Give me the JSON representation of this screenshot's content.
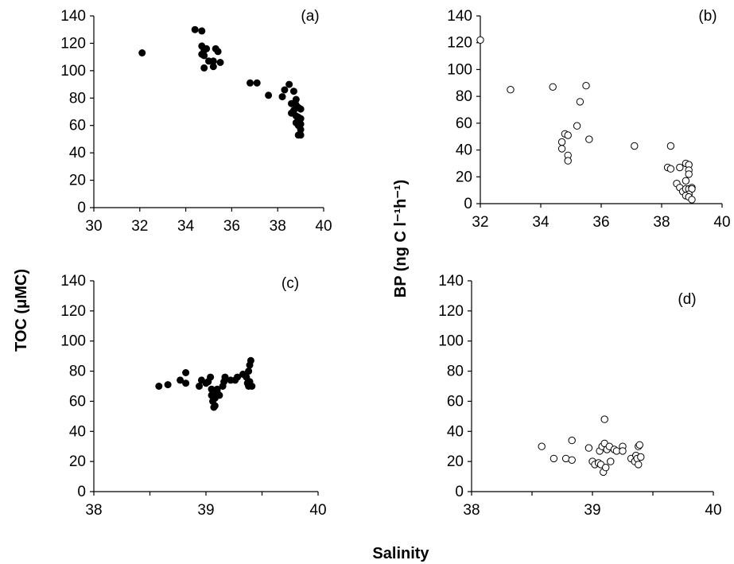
{
  "figure": {
    "y_label_left": "TOC (μMC)",
    "y_label_right": "BP (ng C l⁻¹h⁻¹)",
    "x_label": "Salinity",
    "colors": {
      "filled": "#000000",
      "open_fill": "#ffffff",
      "stroke": "#000000"
    }
  },
  "chart_data": [
    {
      "type": "scatter",
      "label": "(a)",
      "marker": "filled",
      "xlim": [
        30,
        40
      ],
      "ylim": [
        0,
        140
      ],
      "xticks": [
        30,
        32,
        34,
        36,
        38,
        40
      ],
      "yticks": [
        0,
        20,
        40,
        60,
        80,
        100,
        120,
        140
      ],
      "points": [
        [
          32.1,
          113
        ],
        [
          34.4,
          130
        ],
        [
          34.7,
          129
        ],
        [
          34.7,
          118
        ],
        [
          34.8,
          115
        ],
        [
          34.9,
          116
        ],
        [
          34.7,
          112
        ],
        [
          34.8,
          111
        ],
        [
          34.8,
          102
        ],
        [
          35.0,
          107
        ],
        [
          35.2,
          107
        ],
        [
          35.2,
          103
        ],
        [
          35.3,
          116
        ],
        [
          35.4,
          114
        ],
        [
          35.5,
          106
        ],
        [
          36.8,
          91
        ],
        [
          37.1,
          91
        ],
        [
          37.6,
          82
        ],
        [
          38.2,
          81
        ],
        [
          38.3,
          86
        ],
        [
          38.5,
          90
        ],
        [
          38.7,
          85
        ],
        [
          38.6,
          76
        ],
        [
          38.7,
          71
        ],
        [
          38.8,
          79
        ],
        [
          38.8,
          75
        ],
        [
          38.9,
          73
        ],
        [
          39.0,
          72
        ],
        [
          38.6,
          69
        ],
        [
          38.8,
          67
        ],
        [
          38.9,
          66
        ],
        [
          38.8,
          62
        ],
        [
          39.0,
          65
        ],
        [
          38.9,
          60
        ],
        [
          39.0,
          57
        ],
        [
          38.9,
          53
        ],
        [
          39.0,
          53
        ],
        [
          39.0,
          61
        ]
      ]
    },
    {
      "type": "scatter",
      "label": "(b)",
      "marker": "open",
      "xlim": [
        32,
        40
      ],
      "ylim": [
        0,
        140
      ],
      "xticks": [
        32,
        34,
        36,
        38,
        40
      ],
      "yticks": [
        0,
        20,
        40,
        60,
        80,
        100,
        120,
        140
      ],
      "points": [
        [
          32.0,
          122
        ],
        [
          33.0,
          85
        ],
        [
          34.4,
          87
        ],
        [
          35.5,
          88
        ],
        [
          35.3,
          76
        ],
        [
          35.2,
          58
        ],
        [
          34.8,
          52
        ],
        [
          34.9,
          51
        ],
        [
          35.6,
          48
        ],
        [
          34.7,
          46
        ],
        [
          34.7,
          41
        ],
        [
          34.9,
          36
        ],
        [
          34.9,
          32
        ],
        [
          37.1,
          43
        ],
        [
          38.3,
          43
        ],
        [
          38.2,
          27
        ],
        [
          38.3,
          26
        ],
        [
          38.6,
          27
        ],
        [
          38.8,
          30
        ],
        [
          38.9,
          29
        ],
        [
          38.9,
          25
        ],
        [
          38.9,
          22
        ],
        [
          38.8,
          17
        ],
        [
          38.5,
          15
        ],
        [
          38.6,
          12
        ],
        [
          38.7,
          9
        ],
        [
          38.8,
          11
        ],
        [
          38.9,
          11
        ],
        [
          39.0,
          12
        ],
        [
          39.0,
          11
        ],
        [
          38.9,
          7
        ],
        [
          38.8,
          6
        ],
        [
          38.9,
          5
        ],
        [
          39.0,
          3
        ]
      ]
    },
    {
      "type": "scatter",
      "label": "(c)",
      "marker": "filled",
      "xlim": [
        38,
        40
      ],
      "ylim": [
        0,
        140
      ],
      "xticks": [
        38,
        39,
        40
      ],
      "yticks": [
        0,
        20,
        40,
        60,
        80,
        100,
        120,
        140
      ],
      "points": [
        [
          38.58,
          70
        ],
        [
          38.66,
          71
        ],
        [
          38.77,
          74
        ],
        [
          38.82,
          72
        ],
        [
          38.82,
          79
        ],
        [
          38.94,
          70
        ],
        [
          38.96,
          74
        ],
        [
          39.0,
          72
        ],
        [
          39.02,
          73
        ],
        [
          39.04,
          76
        ],
        [
          39.05,
          68
        ],
        [
          39.05,
          64
        ],
        [
          39.06,
          60
        ],
        [
          39.07,
          56
        ],
        [
          39.08,
          57
        ],
        [
          39.08,
          62
        ],
        [
          39.1,
          68
        ],
        [
          39.1,
          66
        ],
        [
          39.12,
          64
        ],
        [
          39.15,
          70
        ],
        [
          39.16,
          73
        ],
        [
          39.17,
          76
        ],
        [
          39.22,
          74
        ],
        [
          39.26,
          74
        ],
        [
          39.28,
          76
        ],
        [
          39.33,
          78
        ],
        [
          39.36,
          76
        ],
        [
          39.37,
          72
        ],
        [
          39.38,
          70
        ],
        [
          39.39,
          73
        ],
        [
          39.38,
          80
        ],
        [
          39.39,
          84
        ],
        [
          39.4,
          87
        ],
        [
          39.41,
          70
        ]
      ]
    },
    {
      "type": "scatter",
      "label": "(d)",
      "marker": "open",
      "xlim": [
        38,
        40
      ],
      "ylim": [
        0,
        140
      ],
      "xticks": [
        38,
        39,
        40
      ],
      "yticks": [
        0,
        20,
        40,
        60,
        80,
        100,
        120,
        140
      ],
      "points": [
        [
          38.58,
          30
        ],
        [
          38.68,
          22
        ],
        [
          38.78,
          22
        ],
        [
          38.83,
          21
        ],
        [
          38.83,
          34
        ],
        [
          38.97,
          29
        ],
        [
          39.0,
          20
        ],
        [
          39.02,
          18
        ],
        [
          39.05,
          19
        ],
        [
          39.06,
          27
        ],
        [
          39.07,
          18
        ],
        [
          39.08,
          30
        ],
        [
          39.09,
          13
        ],
        [
          39.1,
          32
        ],
        [
          39.1,
          48
        ],
        [
          39.11,
          16
        ],
        [
          39.12,
          28
        ],
        [
          39.14,
          30
        ],
        [
          39.15,
          20
        ],
        [
          39.18,
          28
        ],
        [
          39.2,
          27
        ],
        [
          39.25,
          30
        ],
        [
          39.25,
          27
        ],
        [
          39.32,
          22
        ],
        [
          39.35,
          20
        ],
        [
          39.36,
          24
        ],
        [
          39.37,
          22
        ],
        [
          39.38,
          18
        ],
        [
          39.38,
          30
        ],
        [
          39.39,
          31
        ],
        [
          39.4,
          23
        ]
      ]
    }
  ]
}
